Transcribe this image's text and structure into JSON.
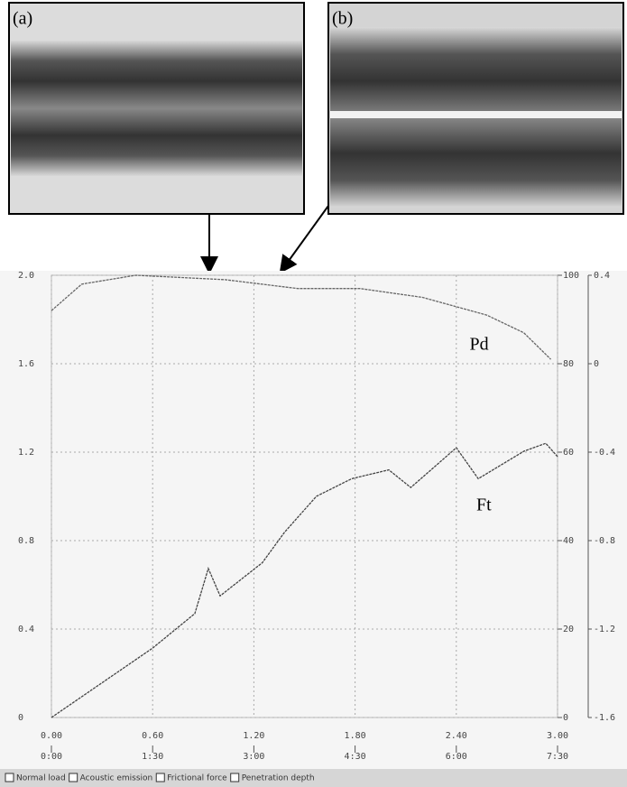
{
  "panels": [
    {
      "label": "(a)"
    },
    {
      "label": "(b)"
    }
  ],
  "chart_data": {
    "type": "line",
    "xlim": [
      0,
      3
    ],
    "xticks": [
      {
        "value": 0,
        "label": "0.00"
      },
      {
        "value": 0.6,
        "label": "0.60"
      },
      {
        "value": 1.2,
        "label": "1.20"
      },
      {
        "value": 1.8,
        "label": "1.80"
      },
      {
        "value": 2.4,
        "label": "2.40"
      },
      {
        "value": 3,
        "label": "3.00"
      }
    ],
    "x2ticks": [
      {
        "value": 0,
        "label": "0:00"
      },
      {
        "value": 0.6,
        "label": "1:30"
      },
      {
        "value": 1.2,
        "label": "3:00"
      },
      {
        "value": 1.8,
        "label": "4:30"
      },
      {
        "value": 2.4,
        "label": "6:00"
      },
      {
        "value": 3,
        "label": "7:30"
      }
    ],
    "ylim": [
      0,
      2
    ],
    "yticks": [
      0,
      0.4,
      0.8,
      1.2,
      1.6,
      {
        "value": 2,
        "label": "2.0"
      }
    ],
    "y2lim": [
      0,
      100
    ],
    "y2ticks": [
      0,
      20,
      40,
      60,
      80,
      100
    ],
    "y3lim": [
      -1.6,
      0.4
    ],
    "y3ticks": [
      -1.6,
      -1.2,
      -0.8,
      -0.4,
      0,
      0.4
    ],
    "grid": true,
    "series": [
      {
        "name": "Pd",
        "color": "#666666",
        "axis": "y2",
        "x": [
          0,
          0.18,
          0.5,
          1.03,
          1.46,
          1.83,
          2.2,
          2.58,
          2.8,
          2.96
        ],
        "values": [
          92,
          98,
          100,
          99,
          97,
          97,
          95,
          91,
          87,
          81
        ]
      },
      {
        "name": "Ft",
        "color": "#444444",
        "axis": "y2",
        "x": [
          0,
          0.6,
          0.85,
          0.93,
          1.0,
          1.25,
          1.38,
          1.57,
          1.78,
          2.0,
          2.13,
          2.4,
          2.53,
          2.8,
          2.93,
          3.0
        ],
        "values": [
          0,
          15.7,
          23.5,
          33.7,
          27.5,
          35,
          41.8,
          50,
          54,
          56,
          52,
          61,
          54,
          60.2,
          62,
          59
        ]
      }
    ],
    "legend": [
      "Normal load",
      "Acoustic emission",
      "Frictional force",
      "Penetration depth"
    ]
  }
}
